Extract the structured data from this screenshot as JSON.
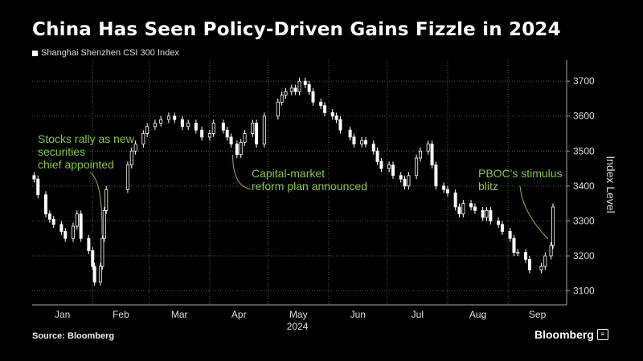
{
  "title": "China Has Seen Policy-Driven Gains Fizzle in 2024",
  "legend_label": "Shanghai Shenzhen CSI 300 Index",
  "source": "Source: Bloomberg",
  "brand": "Bloomberg",
  "colors": {
    "background": "#000000",
    "text": "#ffffff",
    "annotation": "#86c24a",
    "grid": "#555555"
  },
  "chart_data": {
    "type": "line",
    "style": "candlestick",
    "title": "China Has Seen Policy-Driven Gains Fizzle in 2024",
    "series": [
      {
        "name": "Shanghai Shenzhen CSI 300 Index"
      }
    ],
    "xlabel": "2024",
    "ylabel": "Index Level",
    "ylim": [
      3060,
      3760
    ],
    "yticks": [
      "3100",
      "3200",
      "3300",
      "3400",
      "3500",
      "3600",
      "3700"
    ],
    "xticks": [
      "Jan",
      "Feb",
      "Mar",
      "Apr",
      "May",
      "Jun",
      "Jul",
      "Aug",
      "Sep"
    ],
    "grid": true,
    "x": [
      "2024-01-02",
      "2024-01-04",
      "2024-01-08",
      "2024-01-10",
      "2024-01-12",
      "2024-01-16",
      "2024-01-18",
      "2024-01-22",
      "2024-01-24",
      "2024-01-26",
      "2024-01-30",
      "2024-02-01",
      "2024-02-02",
      "2024-02-05",
      "2024-02-06",
      "2024-02-07",
      "2024-02-08",
      "2024-02-19",
      "2024-02-21",
      "2024-02-23",
      "2024-02-27",
      "2024-02-29",
      "2024-03-04",
      "2024-03-07",
      "2024-03-11",
      "2024-03-14",
      "2024-03-18",
      "2024-03-21",
      "2024-03-25",
      "2024-03-28",
      "2024-04-01",
      "2024-04-03",
      "2024-04-08",
      "2024-04-10",
      "2024-04-12",
      "2024-04-15",
      "2024-04-17",
      "2024-04-19",
      "2024-04-23",
      "2024-04-25",
      "2024-04-29",
      "2024-05-06",
      "2024-05-08",
      "2024-05-10",
      "2024-05-13",
      "2024-05-15",
      "2024-05-17",
      "2024-05-20",
      "2024-05-22",
      "2024-05-24",
      "2024-05-28",
      "2024-05-30",
      "2024-06-03",
      "2024-06-05",
      "2024-06-07",
      "2024-06-12",
      "2024-06-14",
      "2024-06-18",
      "2024-06-20",
      "2024-06-24",
      "2024-06-26",
      "2024-06-28",
      "2024-07-02",
      "2024-07-04",
      "2024-07-08",
      "2024-07-10",
      "2024-07-12",
      "2024-07-16",
      "2024-07-18",
      "2024-07-22",
      "2024-07-24",
      "2024-07-26",
      "2024-07-30",
      "2024-08-01",
      "2024-08-05",
      "2024-08-07",
      "2024-08-09",
      "2024-08-13",
      "2024-08-15",
      "2024-08-19",
      "2024-08-21",
      "2024-08-23",
      "2024-08-27",
      "2024-08-29",
      "2024-09-02",
      "2024-09-04",
      "2024-09-06",
      "2024-09-10",
      "2024-09-12",
      "2024-09-18",
      "2024-09-20",
      "2024-09-23",
      "2024-09-24"
    ],
    "values": [
      3420,
      3375,
      3320,
      3305,
      3290,
      3270,
      3250,
      3285,
      3320,
      3250,
      3215,
      3170,
      3125,
      3170,
      3250,
      3330,
      3390,
      3460,
      3500,
      3520,
      3550,
      3570,
      3580,
      3590,
      3600,
      3590,
      3570,
      3580,
      3560,
      3540,
      3550,
      3580,
      3560,
      3540,
      3520,
      3490,
      3525,
      3550,
      3580,
      3520,
      3600,
      3640,
      3660,
      3670,
      3680,
      3670,
      3700,
      3690,
      3670,
      3640,
      3630,
      3610,
      3600,
      3590,
      3560,
      3540,
      3520,
      3530,
      3520,
      3500,
      3470,
      3450,
      3460,
      3430,
      3420,
      3400,
      3430,
      3480,
      3500,
      3520,
      3460,
      3400,
      3390,
      3380,
      3340,
      3320,
      3350,
      3340,
      3330,
      3310,
      3330,
      3300,
      3290,
      3270,
      3250,
      3210,
      3210,
      3190,
      3160,
      3170,
      3200,
      3230,
      3340
    ],
    "annotations": [
      {
        "lines": [
          "Stocks rally as new",
          "securities",
          "chief appointed"
        ],
        "date": "2024-02-07",
        "value": 3330
      },
      {
        "lines": [
          "Capital-market",
          "reform plan announced"
        ],
        "date": "2024-04-12",
        "value": 3520
      },
      {
        "lines": [
          "PBOC's stimulus",
          "blitz"
        ],
        "date": "2024-09-24",
        "value": 3340
      }
    ]
  }
}
